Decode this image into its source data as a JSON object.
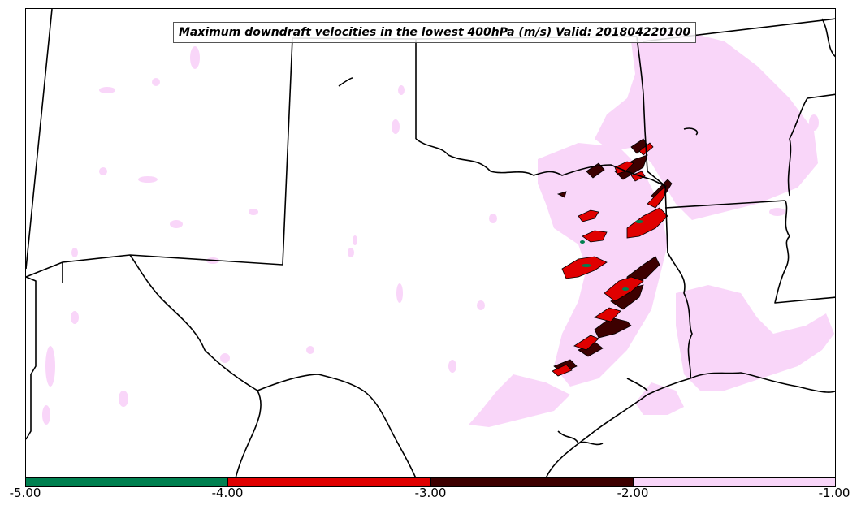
{
  "title": "Maximum downdraft velocities in the lowest 400hPa (m/s) Valid: 201804220100",
  "colors": {
    "lightest": "#f9d6f9",
    "dark_red": "#3d0000",
    "red": "#e00000",
    "green": "#008050",
    "boundary": "#000000",
    "background": "#ffffff"
  },
  "colorbar": {
    "ticks": [
      "-5.00",
      "-4.00",
      "-3.00",
      "-2.00",
      "-1.00"
    ],
    "segments": [
      {
        "range": [
          -5.0,
          -4.0
        ],
        "color": "#008050"
      },
      {
        "range": [
          -4.0,
          -3.0
        ],
        "color": "#e00000"
      },
      {
        "range": [
          -3.0,
          -2.0
        ],
        "color": "#3d0000"
      },
      {
        "range": [
          -2.0,
          -1.0
        ],
        "color": "#f9d6f9"
      }
    ]
  }
}
